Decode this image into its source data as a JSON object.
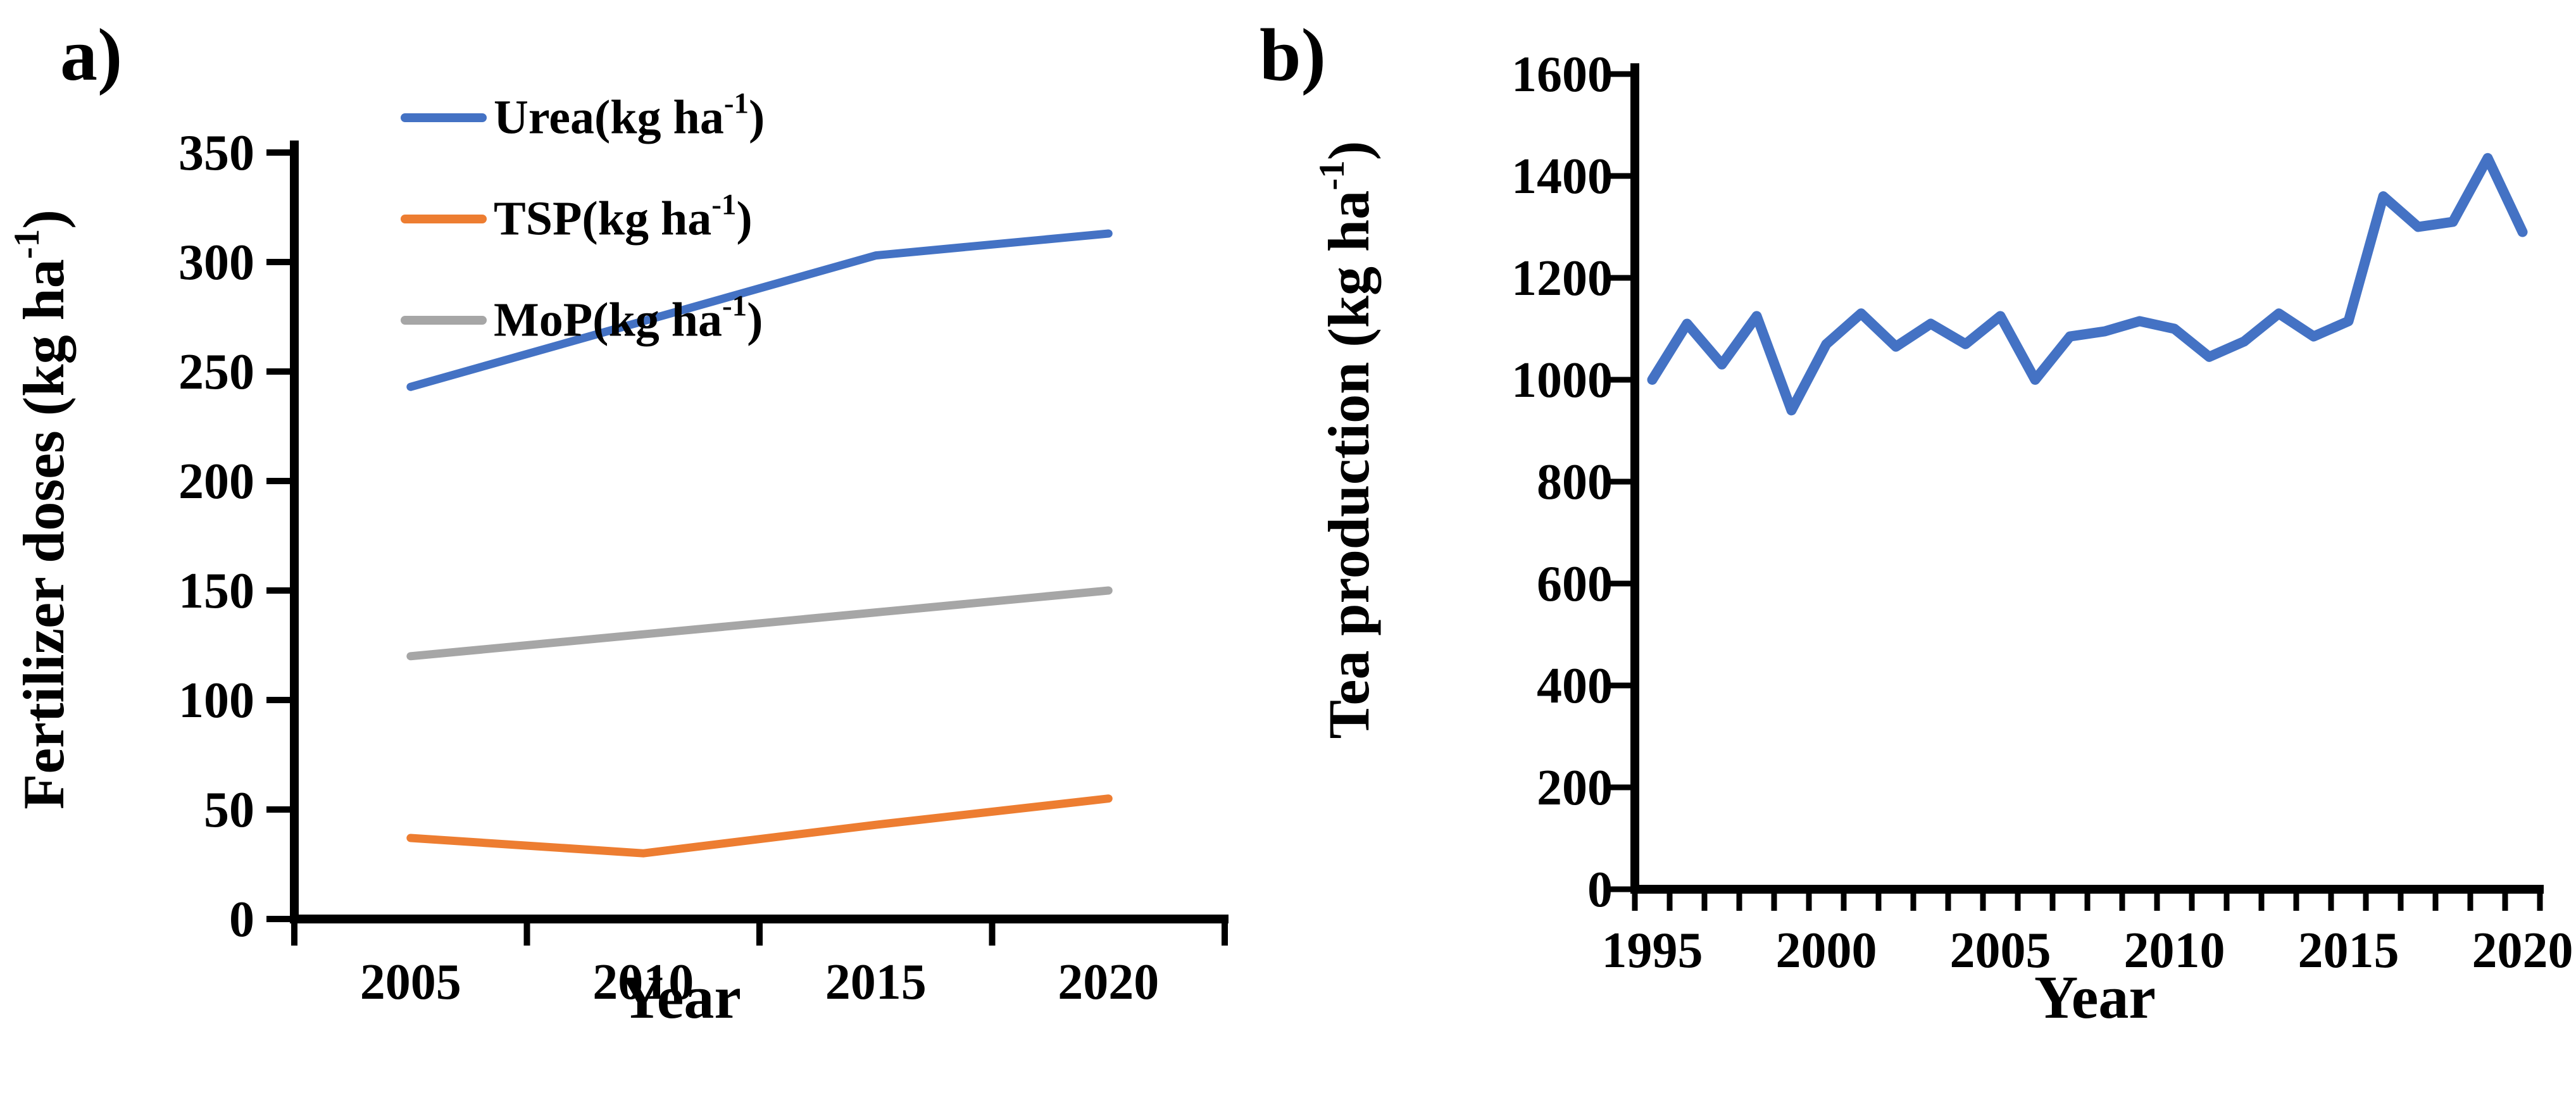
{
  "page": {
    "background": "#ffffff"
  },
  "panels": {
    "a": {
      "label": "a)"
    },
    "b": {
      "label": "b)"
    }
  },
  "colors": {
    "urea_blue": "#4472C4",
    "tsp_orange": "#ED7D31",
    "mop_gray": "#A6A6A6",
    "axis_black": "#000000"
  },
  "chart_data": [
    {
      "id": "fertilizer-doses",
      "panel": "a",
      "type": "line",
      "title": "",
      "xlabel": "Year",
      "ylabel_parts": {
        "pre": "Fertilizer doses (kg ha",
        "sup": "-1",
        "post": ")"
      },
      "categories": [
        "2005",
        "2010",
        "2015",
        "2020"
      ],
      "ylim": [
        0,
        350
      ],
      "yticks": [
        "0",
        "50",
        "100",
        "150",
        "200",
        "250",
        "300",
        "350"
      ],
      "xtick_label_every": 1,
      "grid": false,
      "legend_position": "inside-top-left",
      "series": [
        {
          "key": "urea",
          "name_parts": {
            "pre": "Urea(kg ha",
            "sup": "-1",
            "post": ")"
          },
          "color": "#4472C4",
          "values": [
            243,
            273,
            303,
            313
          ]
        },
        {
          "key": "tsp",
          "name_parts": {
            "pre": "TSP(kg ha",
            "sup": "-1",
            "post": ")"
          },
          "color": "#ED7D31",
          "values": [
            37,
            30,
            43,
            55
          ]
        },
        {
          "key": "mop",
          "name_parts": {
            "pre": "MoP(kg ha",
            "sup": "-1",
            "post": ")"
          },
          "color": "#A6A6A6",
          "values": [
            120,
            130,
            140,
            150
          ]
        }
      ]
    },
    {
      "id": "tea-production",
      "panel": "b",
      "type": "line",
      "title": "",
      "xlabel": "Year",
      "ylabel_parts": {
        "pre": "Tea production (kg ha",
        "sup": "-1",
        "post": ")"
      },
      "categories": [
        "1995",
        "1996",
        "1997",
        "1998",
        "1999",
        "2000",
        "2001",
        "2002",
        "2003",
        "2004",
        "2005",
        "2006",
        "2007",
        "2008",
        "2009",
        "2010",
        "2011",
        "2012",
        "2013",
        "2014",
        "2015",
        "2016",
        "2017",
        "2018",
        "2019",
        "2020"
      ],
      "ylim": [
        0,
        1600
      ],
      "yticks": [
        "0",
        "200",
        "400",
        "600",
        "800",
        "1000",
        "1200",
        "1400",
        "1600"
      ],
      "xtick_label_every": 5,
      "grid": false,
      "legend_position": "none",
      "series": [
        {
          "key": "tea",
          "name_parts": {
            "pre": "Tea production (kg ha",
            "sup": "-1",
            "post": ")"
          },
          "color": "#4472C4",
          "values": [
            1000,
            1110,
            1030,
            1125,
            940,
            1070,
            1130,
            1065,
            1110,
            1070,
            1125,
            1000,
            1085,
            1095,
            1115,
            1100,
            1045,
            1075,
            1130,
            1085,
            1115,
            1360,
            1300,
            1310,
            1435,
            1290
          ]
        }
      ]
    }
  ]
}
